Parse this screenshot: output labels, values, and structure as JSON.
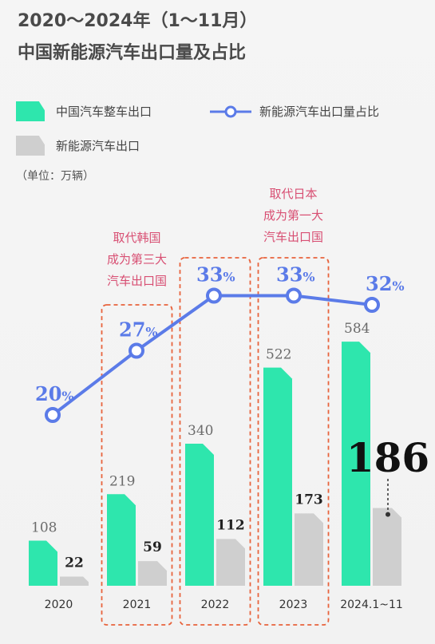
{
  "chart_data": {
    "type": "bar",
    "title": "2020～2024年（1～11月）",
    "subtitle": "中国新能源汽车出口量及占比",
    "unit_note": "（单位：万辆）",
    "categories": [
      "2020",
      "2021",
      "2022",
      "2023",
      "2024.1~11"
    ],
    "series": [
      {
        "name": "中国汽车整车出口",
        "values": [
          108,
          219,
          340,
          522,
          584
        ],
        "color": "#2ee6ad"
      },
      {
        "name": "新能源汽车出口",
        "values": [
          22,
          59,
          112,
          173,
          186
        ],
        "color": "#cfcfcf"
      }
    ],
    "line_series": {
      "name": "新能源汽车出口量占比",
      "values": [
        20,
        27,
        33,
        33,
        32
      ],
      "unit": "%",
      "color": "#5b7be8"
    },
    "ylim": [
      0,
      620
    ],
    "highlight_value": "186",
    "annotations": [
      {
        "category": "2021",
        "lines": [
          "取代韩国",
          "成为第三大",
          "汽车出口国"
        ]
      },
      {
        "category": "2022",
        "lines": []
      },
      {
        "category": "2023",
        "lines": [
          "取代日本",
          "成为第一大",
          "汽车出口国"
        ]
      }
    ]
  }
}
